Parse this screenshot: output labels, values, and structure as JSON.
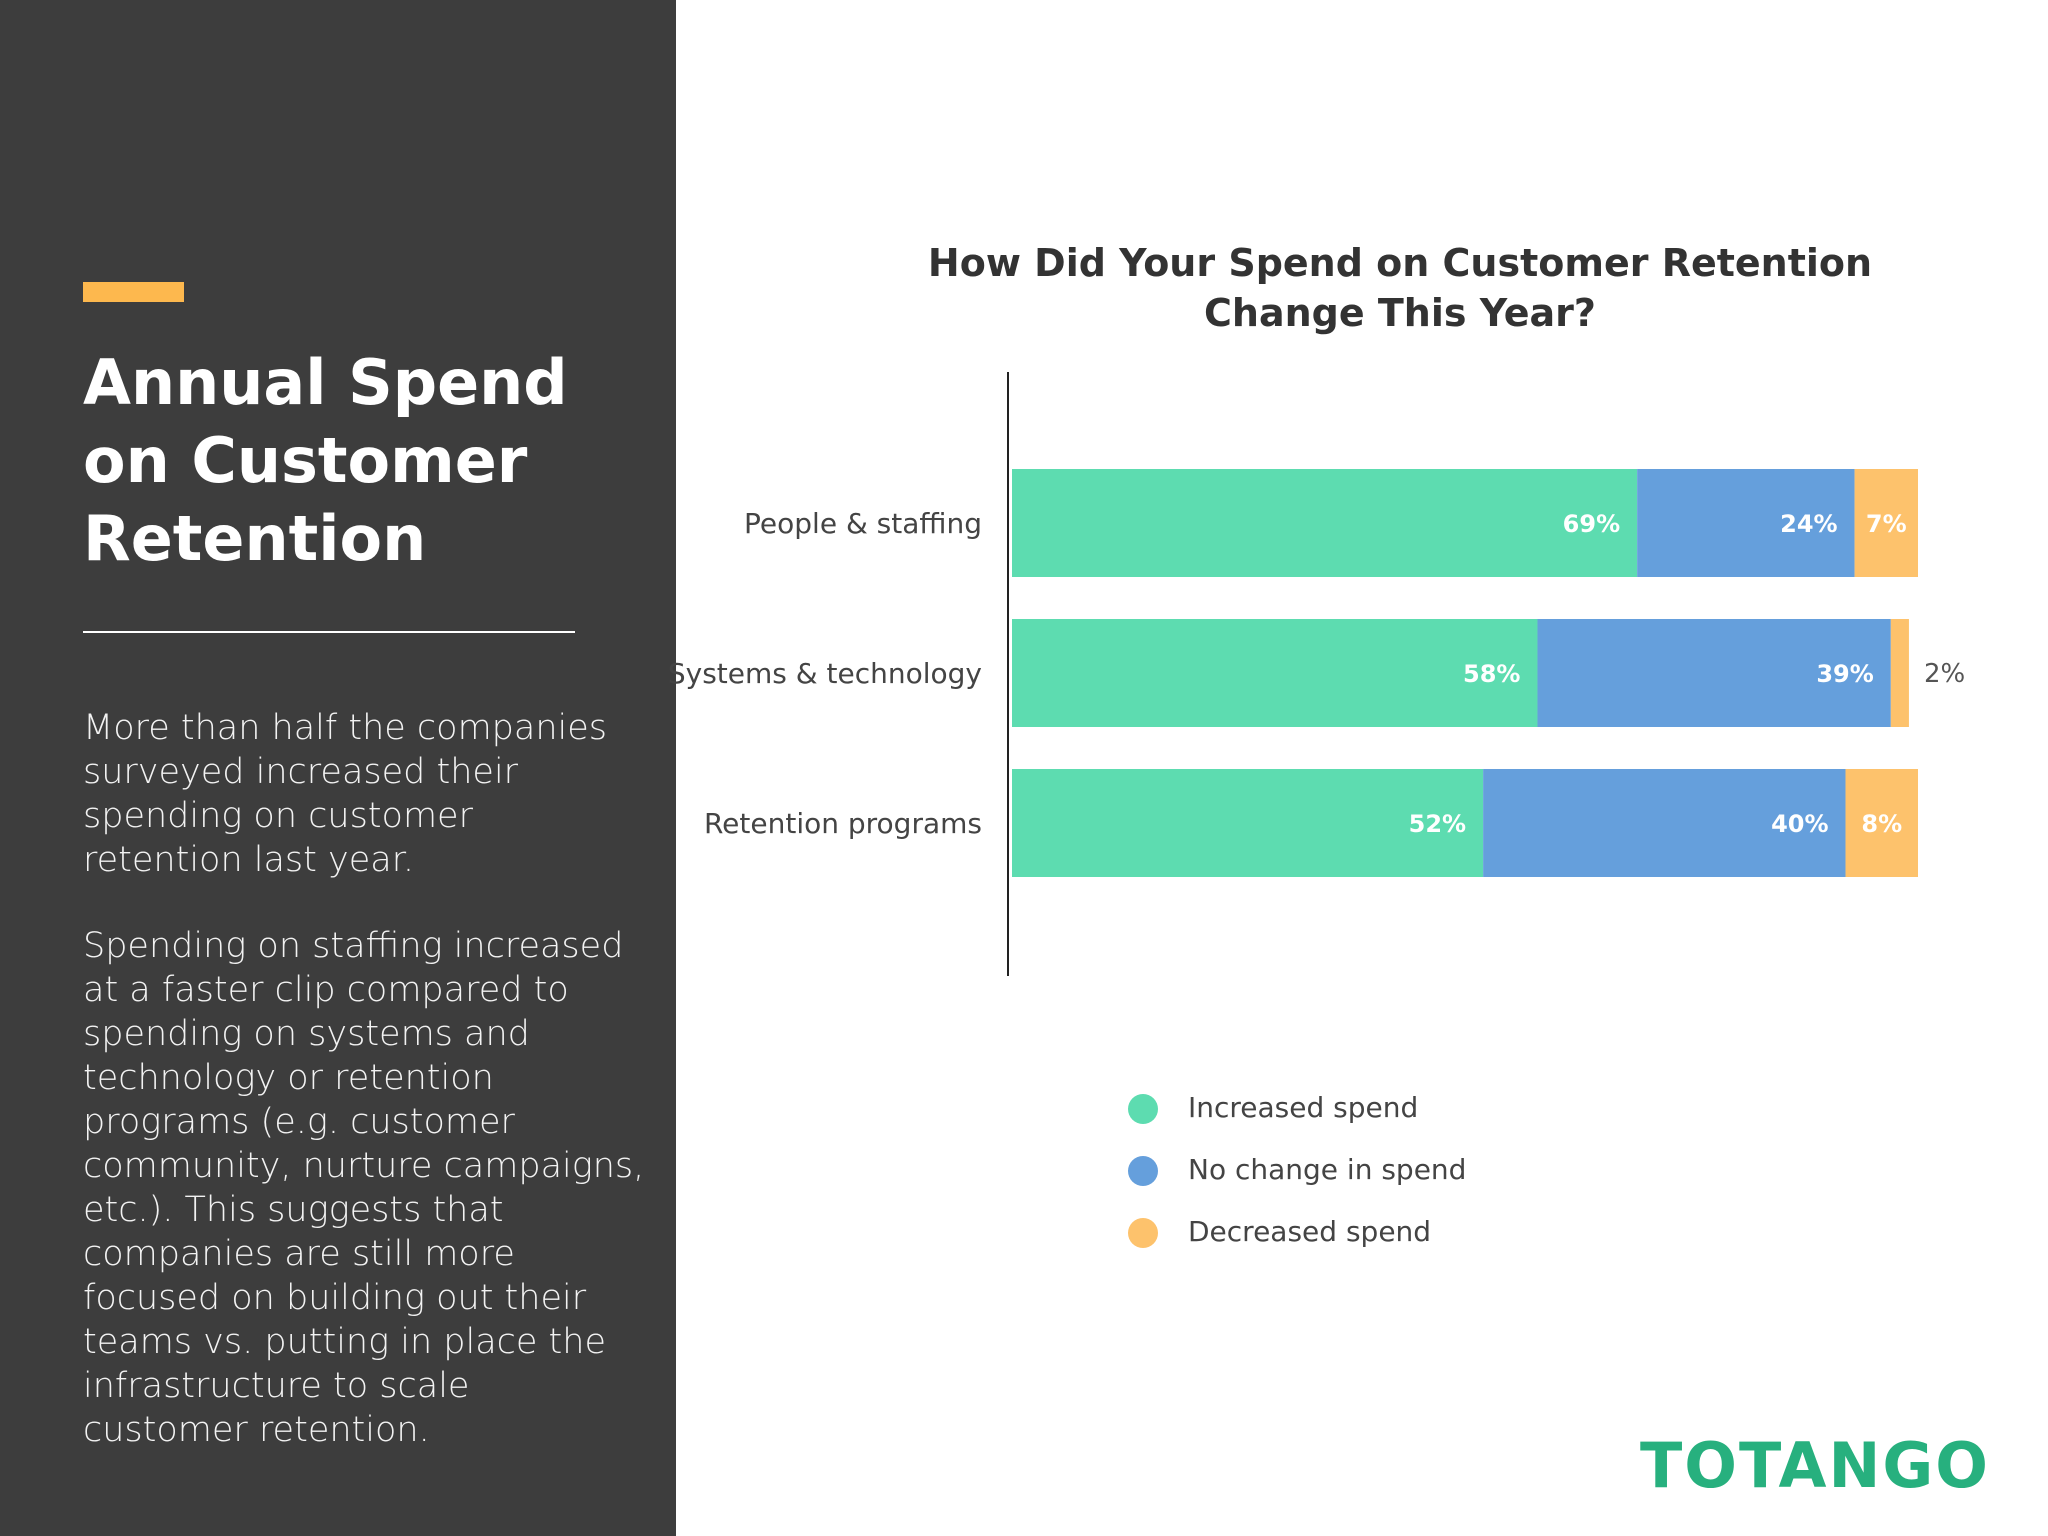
{
  "panel": {
    "title_lines": [
      "Annual Spend",
      "on Customer",
      "Retention"
    ],
    "paragraph1_lines": [
      "More than half the companies",
      "surveyed increased their",
      "spending on customer",
      "retention last year."
    ],
    "paragraph2_lines": [
      "Spending on staffing increased",
      "at a faster clip compared to",
      "spending on systems and",
      "technology or retention",
      "programs (e.g. customer",
      "community, nurture campaigns,",
      "etc.). This suggests that",
      "companies are still more",
      "focused on building out their",
      "teams vs. putting in place the",
      "infrastructure to scale",
      "customer retention."
    ],
    "accent_color": "#fdb84e",
    "background_color": "#3d3d3d"
  },
  "chart_data": {
    "type": "bar",
    "orientation": "horizontal",
    "stacked": true,
    "title_lines": [
      "How Did Your Spend on Customer Retention",
      "Change This Year?"
    ],
    "categories": [
      "People & staffing",
      "Systems & technology",
      "Retention programs"
    ],
    "series": [
      {
        "name": "Increased spend",
        "color": "#5ddcb0",
        "values": [
          69,
          58,
          52
        ],
        "labels": [
          "69%",
          "58%",
          "52%"
        ]
      },
      {
        "name": "No change in spend",
        "color": "#659fdc",
        "values": [
          24,
          39,
          40
        ],
        "labels": [
          "24%",
          "39%",
          "40%"
        ]
      },
      {
        "name": "Decreased spend",
        "color": "#fdc26c",
        "values": [
          7,
          2,
          8
        ],
        "labels": [
          "7%",
          "2%",
          "8%"
        ]
      }
    ],
    "xlim": [
      0,
      100
    ],
    "grid": false,
    "legend_position": "bottom"
  },
  "logo": {
    "text": "TOTANGO",
    "color": "#27b07e"
  }
}
